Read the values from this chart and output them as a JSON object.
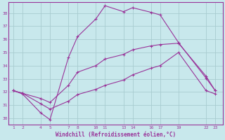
{
  "xlabel": "Windchill (Refroidissement éolien,°C)",
  "bg_color": "#c8e8ec",
  "grid_color": "#a8ccd0",
  "line_color": "#993399",
  "xticks": [
    1,
    2,
    4,
    5,
    7,
    8,
    10,
    11,
    13,
    14,
    16,
    17,
    19,
    22,
    23
  ],
  "yticks": [
    30,
    31,
    32,
    33,
    34,
    35,
    36,
    37,
    38
  ],
  "ylim": [
    29.5,
    38.8
  ],
  "xlim": [
    0.5,
    23.8
  ],
  "line1_x": [
    1,
    2,
    4,
    5,
    7,
    8,
    10,
    11,
    13,
    14,
    16,
    17,
    19,
    22,
    23
  ],
  "line1_y": [
    32.1,
    31.85,
    30.4,
    29.9,
    34.6,
    36.2,
    37.55,
    38.55,
    38.1,
    38.4,
    38.05,
    37.85,
    35.75,
    33.05,
    32.1
  ],
  "line2_x": [
    1,
    2,
    4,
    5,
    7,
    8,
    10,
    11,
    13,
    14,
    16,
    17,
    19,
    22,
    23
  ],
  "line2_y": [
    32.1,
    31.9,
    31.5,
    31.2,
    32.5,
    33.5,
    34.0,
    34.5,
    34.85,
    35.2,
    35.5,
    35.6,
    35.7,
    33.2,
    32.1
  ],
  "line3_x": [
    1,
    2,
    4,
    5,
    7,
    8,
    10,
    11,
    13,
    14,
    16,
    17,
    19,
    22,
    23
  ],
  "line3_y": [
    32.1,
    31.9,
    31.1,
    30.7,
    31.3,
    31.8,
    32.2,
    32.5,
    32.9,
    33.3,
    33.8,
    34.0,
    35.0,
    32.1,
    31.85
  ]
}
